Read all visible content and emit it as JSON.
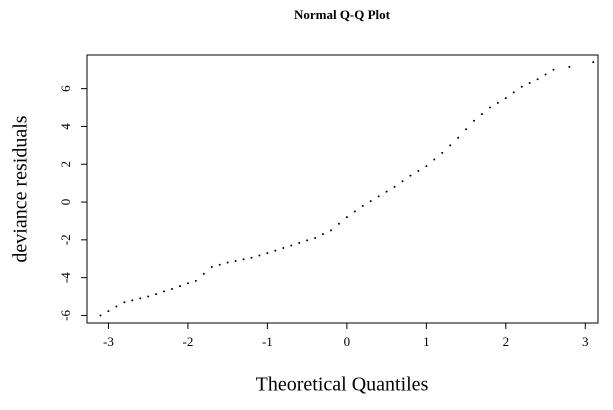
{
  "chart_data": {
    "type": "scatter",
    "title": "Normal Q-Q Plot",
    "x_label": "Theoretical Quantiles",
    "y_label": "deviance residuals",
    "xlim": [
      -3.27,
      3.16
    ],
    "ylim": [
      -6.4,
      7.78
    ],
    "xticks": [
      -3,
      -2,
      -1,
      0,
      1,
      2,
      3
    ],
    "yticks": [
      -6,
      -4,
      -2,
      0,
      2,
      4,
      6
    ],
    "color": "#000000",
    "x": [
      -3.1,
      -3.0,
      -2.9,
      -2.8,
      -2.7,
      -2.6,
      -2.5,
      -2.4,
      -2.3,
      -2.2,
      -2.1,
      -2.0,
      -1.9,
      -1.8,
      -1.7,
      -1.6,
      -1.5,
      -1.4,
      -1.3,
      -1.2,
      -1.1,
      -1.0,
      -0.9,
      -0.8,
      -0.7,
      -0.6,
      -0.5,
      -0.4,
      -0.3,
      -0.2,
      -0.1,
      0,
      0.1,
      0.2,
      0.3,
      0.4,
      0.5,
      0.6,
      0.7,
      0.8,
      0.9,
      1.0,
      1.1,
      1.2,
      1.3,
      1.4,
      1.5,
      1.6,
      1.7,
      1.8,
      1.9,
      2.0,
      2.1,
      2.2,
      2.3,
      2.4,
      2.5,
      2.6,
      2.8,
      3.1
    ],
    "values": [
      -6.0,
      -5.77,
      -5.53,
      -5.3,
      -5.2,
      -5.1,
      -5.0,
      -4.87,
      -4.73,
      -4.6,
      -4.45,
      -4.3,
      -4.17,
      -3.8,
      -3.44,
      -3.32,
      -3.2,
      -3.12,
      -3.03,
      -2.95,
      -2.83,
      -2.7,
      -2.57,
      -2.43,
      -2.3,
      -2.17,
      -2.03,
      -1.9,
      -1.7,
      -1.5,
      -1.15,
      -0.8,
      -0.5,
      -0.2,
      0.05,
      0.3,
      0.55,
      0.8,
      1.1,
      1.4,
      1.65,
      1.9,
      2.25,
      2.6,
      3.0,
      3.4,
      3.85,
      4.3,
      4.65,
      5.0,
      5.25,
      5.5,
      5.8,
      6.1,
      6.3,
      6.5,
      6.75,
      7.0,
      7.15,
      7.4
    ]
  }
}
